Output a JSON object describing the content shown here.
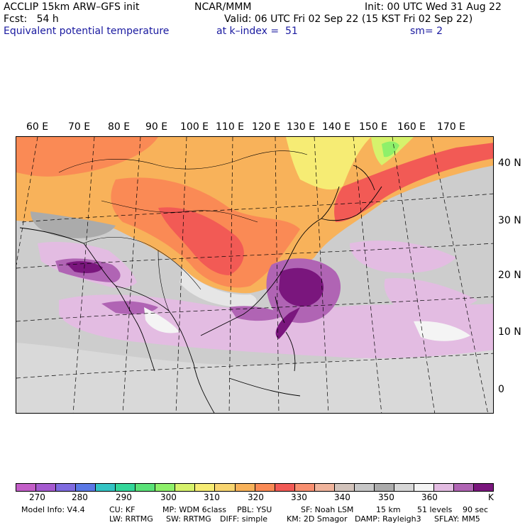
{
  "header": {
    "model_line": "ACCLIP 15km ARW–GFS init",
    "org": "NCAR/MMM",
    "init": "Init: 00 UTC Wed 31 Aug 22",
    "fcst": "Fcst:   54 h",
    "valid": "Valid: 06 UTC Fri 02 Sep 22 (15 KST Fri 02 Sep 22)",
    "field": "Equivalent potential temperature",
    "level": "at k–index =  51",
    "smooth": "sm= 2"
  },
  "map": {
    "lon_labels": [
      "60 E",
      "70 E",
      "80 E",
      "90 E",
      "100 E",
      "110 E",
      "120 E",
      "130 E",
      "140 E",
      "150 E",
      "160 E",
      "170 E"
    ],
    "lat_labels": [
      "40 N",
      "30 N",
      "20 N",
      "10 N",
      "0"
    ]
  },
  "colorbar": {
    "colors": [
      "#c35ec8",
      "#a55ad0",
      "#7f6be0",
      "#5a78e6",
      "#33c4c4",
      "#33d79a",
      "#5ae278",
      "#8ef06a",
      "#d6f26c",
      "#f6ec74",
      "#f8d570",
      "#f8b25a",
      "#fa8a55",
      "#f25a55",
      "#f88f70",
      "#f0b49c",
      "#d2c3bb",
      "#c7c7c7",
      "#ababab",
      "#d7d7d7",
      "#f4f4f4",
      "#e3bce2",
      "#b064b4",
      "#7a167d"
    ],
    "labels": [
      "270",
      "280",
      "290",
      "300",
      "310",
      "320",
      "330",
      "340",
      "350",
      "360",
      "K"
    ]
  },
  "footer": {
    "line1": [
      "Model Info: V4.4",
      "CU: KF",
      "MP: WDM 6class",
      "PBL: YSU",
      "SF: Noah LSM",
      "15 km",
      "51 levels",
      "90 sec"
    ],
    "line2": [
      "LW: RRTMG",
      "SW: RRTMG",
      "DIFF: simple",
      "KM: 2D Smagor",
      "DAMP: Rayleigh3",
      "SFLAY: MM5"
    ]
  }
}
